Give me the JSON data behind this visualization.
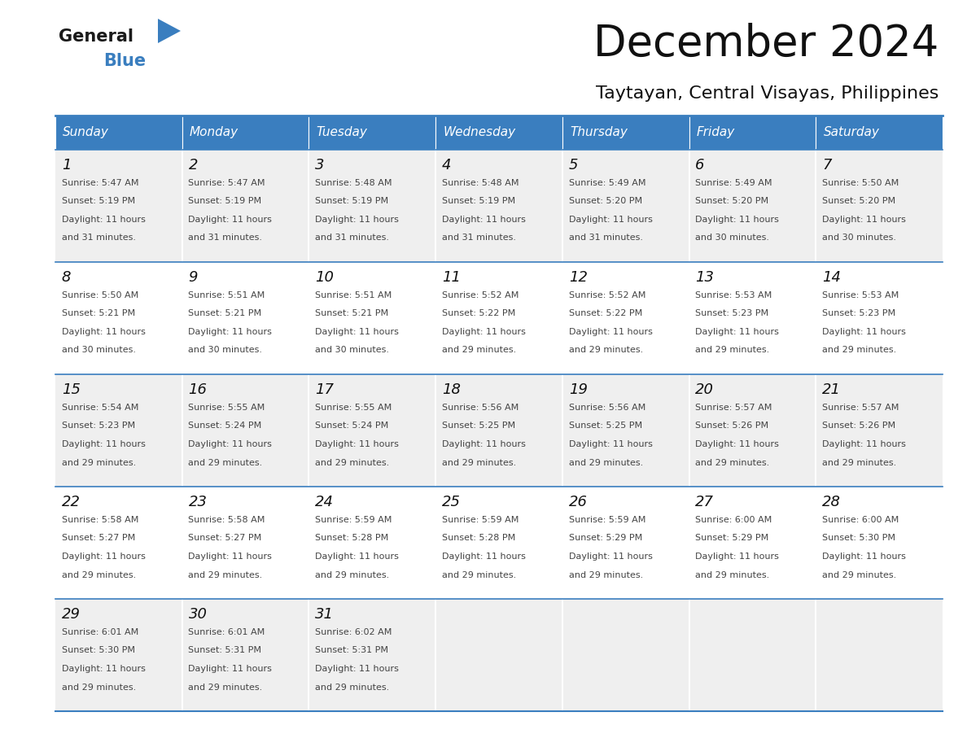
{
  "title": "December 2024",
  "subtitle": "Taytayan, Central Visayas, Philippines",
  "header_color": "#3a7ebf",
  "header_text_color": "#ffffff",
  "days_of_week": [
    "Sunday",
    "Monday",
    "Tuesday",
    "Wednesday",
    "Thursday",
    "Friday",
    "Saturday"
  ],
  "row_bg": [
    "#efefef",
    "#ffffff",
    "#efefef",
    "#ffffff",
    "#efefef"
  ],
  "grid_line_color": "#3a7ebf",
  "text_color": "#444444",
  "day_num_color": "#222222",
  "calendar_data": [
    [
      {
        "day": 1,
        "sunrise": "5:47 AM",
        "sunset": "5:19 PM",
        "daylight": "11 hours and 31 minutes."
      },
      {
        "day": 2,
        "sunrise": "5:47 AM",
        "sunset": "5:19 PM",
        "daylight": "11 hours and 31 minutes."
      },
      {
        "day": 3,
        "sunrise": "5:48 AM",
        "sunset": "5:19 PM",
        "daylight": "11 hours and 31 minutes."
      },
      {
        "day": 4,
        "sunrise": "5:48 AM",
        "sunset": "5:19 PM",
        "daylight": "11 hours and 31 minutes."
      },
      {
        "day": 5,
        "sunrise": "5:49 AM",
        "sunset": "5:20 PM",
        "daylight": "11 hours and 31 minutes."
      },
      {
        "day": 6,
        "sunrise": "5:49 AM",
        "sunset": "5:20 PM",
        "daylight": "11 hours and 30 minutes."
      },
      {
        "day": 7,
        "sunrise": "5:50 AM",
        "sunset": "5:20 PM",
        "daylight": "11 hours and 30 minutes."
      }
    ],
    [
      {
        "day": 8,
        "sunrise": "5:50 AM",
        "sunset": "5:21 PM",
        "daylight": "11 hours and 30 minutes."
      },
      {
        "day": 9,
        "sunrise": "5:51 AM",
        "sunset": "5:21 PM",
        "daylight": "11 hours and 30 minutes."
      },
      {
        "day": 10,
        "sunrise": "5:51 AM",
        "sunset": "5:21 PM",
        "daylight": "11 hours and 30 minutes."
      },
      {
        "day": 11,
        "sunrise": "5:52 AM",
        "sunset": "5:22 PM",
        "daylight": "11 hours and 29 minutes."
      },
      {
        "day": 12,
        "sunrise": "5:52 AM",
        "sunset": "5:22 PM",
        "daylight": "11 hours and 29 minutes."
      },
      {
        "day": 13,
        "sunrise": "5:53 AM",
        "sunset": "5:23 PM",
        "daylight": "11 hours and 29 minutes."
      },
      {
        "day": 14,
        "sunrise": "5:53 AM",
        "sunset": "5:23 PM",
        "daylight": "11 hours and 29 minutes."
      }
    ],
    [
      {
        "day": 15,
        "sunrise": "5:54 AM",
        "sunset": "5:23 PM",
        "daylight": "11 hours and 29 minutes."
      },
      {
        "day": 16,
        "sunrise": "5:55 AM",
        "sunset": "5:24 PM",
        "daylight": "11 hours and 29 minutes."
      },
      {
        "day": 17,
        "sunrise": "5:55 AM",
        "sunset": "5:24 PM",
        "daylight": "11 hours and 29 minutes."
      },
      {
        "day": 18,
        "sunrise": "5:56 AM",
        "sunset": "5:25 PM",
        "daylight": "11 hours and 29 minutes."
      },
      {
        "day": 19,
        "sunrise": "5:56 AM",
        "sunset": "5:25 PM",
        "daylight": "11 hours and 29 minutes."
      },
      {
        "day": 20,
        "sunrise": "5:57 AM",
        "sunset": "5:26 PM",
        "daylight": "11 hours and 29 minutes."
      },
      {
        "day": 21,
        "sunrise": "5:57 AM",
        "sunset": "5:26 PM",
        "daylight": "11 hours and 29 minutes."
      }
    ],
    [
      {
        "day": 22,
        "sunrise": "5:58 AM",
        "sunset": "5:27 PM",
        "daylight": "11 hours and 29 minutes."
      },
      {
        "day": 23,
        "sunrise": "5:58 AM",
        "sunset": "5:27 PM",
        "daylight": "11 hours and 29 minutes."
      },
      {
        "day": 24,
        "sunrise": "5:59 AM",
        "sunset": "5:28 PM",
        "daylight": "11 hours and 29 minutes."
      },
      {
        "day": 25,
        "sunrise": "5:59 AM",
        "sunset": "5:28 PM",
        "daylight": "11 hours and 29 minutes."
      },
      {
        "day": 26,
        "sunrise": "5:59 AM",
        "sunset": "5:29 PM",
        "daylight": "11 hours and 29 minutes."
      },
      {
        "day": 27,
        "sunrise": "6:00 AM",
        "sunset": "5:29 PM",
        "daylight": "11 hours and 29 minutes."
      },
      {
        "day": 28,
        "sunrise": "6:00 AM",
        "sunset": "5:30 PM",
        "daylight": "11 hours and 29 minutes."
      }
    ],
    [
      {
        "day": 29,
        "sunrise": "6:01 AM",
        "sunset": "5:30 PM",
        "daylight": "11 hours and 29 minutes."
      },
      {
        "day": 30,
        "sunrise": "6:01 AM",
        "sunset": "5:31 PM",
        "daylight": "11 hours and 29 minutes."
      },
      {
        "day": 31,
        "sunrise": "6:02 AM",
        "sunset": "5:31 PM",
        "daylight": "11 hours and 29 minutes."
      },
      null,
      null,
      null,
      null
    ]
  ],
  "logo_text_general": "General",
  "logo_text_blue": "Blue",
  "logo_triangle_color": "#3a7ebf",
  "figsize": [
    11.88,
    9.18
  ],
  "dpi": 100
}
